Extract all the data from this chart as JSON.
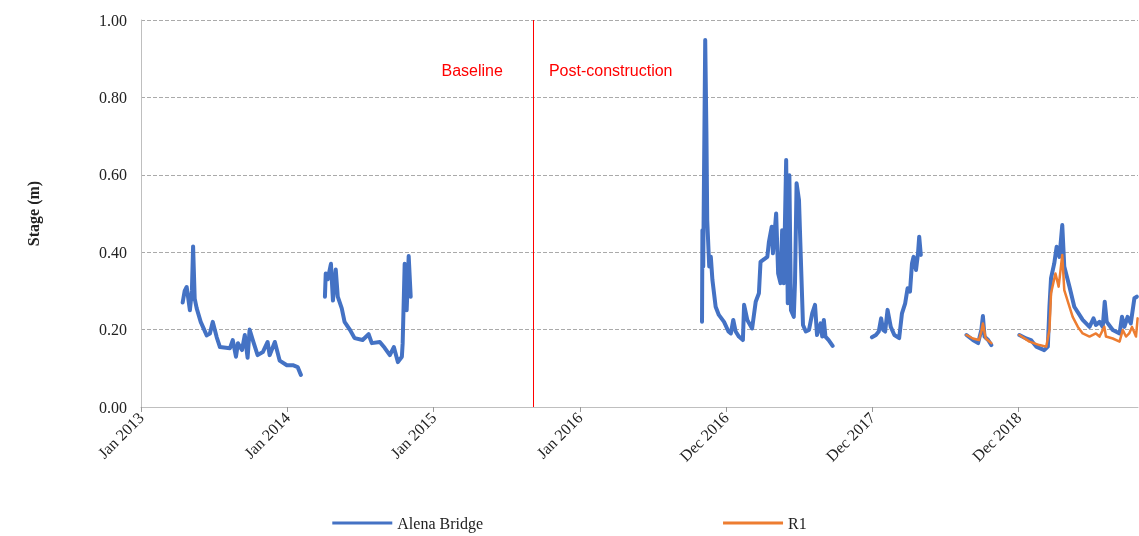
{
  "chart_data": {
    "type": "line",
    "ylabel": "Stage (m)",
    "xlim": [
      "2013-01-01",
      "2019-10-25"
    ],
    "xticks": [
      {
        "value": "2013-01-01",
        "label": "Jan 2013"
      },
      {
        "value": "2014-01-01",
        "label": "Jan 2014"
      },
      {
        "value": "2015-01-01",
        "label": "Jan 2015"
      },
      {
        "value": "2016-01-01",
        "label": "Jan 2016"
      },
      {
        "value": "2016-12-31",
        "label": "Dec 2016"
      },
      {
        "value": "2017-12-31",
        "label": "Dec 2017"
      },
      {
        "value": "2018-12-31",
        "label": "Dec 2018"
      }
    ],
    "ylim": [
      0,
      1
    ],
    "yticks": [
      {
        "value": 0,
        "label": "0.00"
      },
      {
        "value": 0.2,
        "label": "0.20"
      },
      {
        "value": 0.4,
        "label": "0.40"
      },
      {
        "value": 0.6,
        "label": "0.60"
      },
      {
        "value": 0.8,
        "label": "0.80"
      },
      {
        "value": 1,
        "label": "1.00"
      }
    ],
    "grid": "y",
    "legend": "bottom",
    "marker": "none",
    "line_style": "solid",
    "ref_lines": [
      {
        "axis": "x",
        "value": "2015-09-06",
        "color": "#ff0000"
      }
    ],
    "annotations": [
      "Baseline",
      "Post-construction"
    ],
    "series": [
      {
        "name": "Alena Bridge",
        "color": "#4472c4",
        "x": [
          "2013-04-15",
          "2013-04-20",
          "2013-04-25",
          "2013-05-03",
          "2013-05-08",
          "2013-05-11",
          "2013-05-15",
          "2013-05-20",
          "2013-05-30",
          "2013-06-14",
          "2013-06-22",
          "2013-06-29",
          "2013-07-09",
          "2013-07-17",
          "2013-08-11",
          "2013-08-18",
          "2013-08-26",
          "2013-08-31",
          "2013-09-10",
          "2013-09-17",
          "2013-09-24",
          "2013-09-29",
          "2013-10-07",
          "2013-10-19",
          "2013-11-01",
          "2013-11-13",
          "2013-11-18",
          "2013-12-01",
          "2013-12-13",
          "2013-12-31",
          "2014-01-15",
          "2014-01-27",
          "2014-02-04",
          "2014-03-10",
          "2014-04-05",
          "2014-04-07",
          "2014-04-12",
          "2014-04-20",
          "2014-04-25",
          "2014-05-02",
          "2014-05-07",
          "2014-05-17",
          "2014-05-24",
          "2014-06-06",
          "2014-06-18",
          "2014-07-08",
          "2014-07-23",
          "2014-07-31",
          "2014-08-20",
          "2014-09-01",
          "2014-09-14",
          "2014-09-24",
          "2014-10-04",
          "2014-10-14",
          "2014-10-16",
          "2014-10-21",
          "2014-10-26",
          "2014-10-31",
          "2014-11-05",
          "2015-06-01",
          "2016-11-01",
          "2016-11-02",
          "2016-11-04",
          "2016-11-09",
          "2016-11-12",
          "2016-11-14",
          "2016-11-19",
          "2016-11-23",
          "2016-11-27",
          "2016-12-05",
          "2016-12-13",
          "2016-12-26",
          "2017-01-06",
          "2017-01-12",
          "2017-01-18",
          "2017-01-24",
          "2017-02-01",
          "2017-02-11",
          "2017-02-14",
          "2017-02-22",
          "2017-03-06",
          "2017-03-15",
          "2017-03-23",
          "2017-03-27",
          "2017-04-13",
          "2017-04-17",
          "2017-04-24",
          "2017-04-27",
          "2017-05-05",
          "2017-05-10",
          "2017-05-16",
          "2017-05-20",
          "2017-05-24",
          "2017-05-30",
          "2017-06-03",
          "2017-06-07",
          "2017-06-11",
          "2017-06-18",
          "2017-06-21",
          "2017-06-25",
          "2017-07-01",
          "2017-07-06",
          "2017-07-11",
          "2017-07-18",
          "2017-07-26",
          "2017-08-03",
          "2017-08-10",
          "2017-08-15",
          "2017-08-24",
          "2017-08-28",
          "2017-09-01",
          "2017-09-05",
          "2017-09-13",
          "2017-09-23",
          "2017-11-15",
          "2017-12-30",
          "2018-01-09",
          "2018-01-16",
          "2018-01-22",
          "2018-01-27",
          "2018-02-01",
          "2018-02-07",
          "2018-02-15",
          "2018-02-24",
          "2018-03-08",
          "2018-03-15",
          "2018-03-23",
          "2018-03-29",
          "2018-04-04",
          "2018-04-09",
          "2018-04-13",
          "2018-04-19",
          "2018-04-24",
          "2018-04-27",
          "2018-05-01",
          "2018-07-01",
          "2018-08-23",
          "2018-09-08",
          "2018-09-21",
          "2018-09-29",
          "2018-10-03",
          "2018-10-07",
          "2018-10-16",
          "2018-10-24",
          "2018-12-01",
          "2019-01-02",
          "2019-01-19",
          "2019-01-31",
          "2019-02-13",
          "2019-03-05",
          "2019-03-14",
          "2019-03-18",
          "2019-03-22",
          "2019-03-30",
          "2019-04-05",
          "2019-04-12",
          "2019-04-19",
          "2019-04-24",
          "2019-05-07",
          "2019-05-19",
          "2019-06-09",
          "2019-06-26",
          "2019-07-06",
          "2019-07-12",
          "2019-07-21",
          "2019-07-29",
          "2019-08-03",
          "2019-08-08",
          "2019-08-23",
          "2019-09-09",
          "2019-09-15",
          "2019-09-21",
          "2019-09-29",
          "2019-10-07",
          "2019-10-16",
          "2019-10-22"
        ],
        "values": [
          0.27,
          0.3,
          0.31,
          0.25,
          0.3,
          0.415,
          0.28,
          0.255,
          0.22,
          0.185,
          0.19,
          0.22,
          0.18,
          0.155,
          0.152,
          0.173,
          0.13,
          0.165,
          0.147,
          0.186,
          0.127,
          0.2,
          0.173,
          0.134,
          0.142,
          0.168,
          0.134,
          0.168,
          0.12,
          0.108,
          0.108,
          0.103,
          0.083,
          null,
          0.285,
          0.345,
          0.33,
          0.37,
          0.275,
          0.355,
          0.285,
          0.255,
          0.22,
          0.2,
          0.178,
          0.173,
          0.188,
          0.165,
          0.168,
          0.153,
          0.134,
          0.155,
          0.116,
          0.13,
          0.165,
          0.37,
          0.25,
          0.39,
          0.285,
          null,
          0.22,
          0.457,
          0.363,
          0.948,
          0.707,
          0.483,
          0.363,
          0.388,
          0.328,
          0.259,
          0.238,
          0.22,
          0.195,
          0.19,
          0.225,
          0.195,
          0.182,
          0.173,
          0.264,
          0.225,
          0.203,
          0.272,
          0.294,
          0.375,
          0.388,
          0.427,
          0.466,
          0.397,
          0.5,
          0.345,
          0.32,
          0.457,
          0.32,
          0.638,
          0.268,
          0.599,
          0.25,
          0.233,
          0.32,
          0.578,
          0.535,
          0.371,
          0.212,
          0.195,
          0.199,
          0.242,
          0.264,
          0.186,
          0.216,
          0.182,
          0.225,
          0.182,
          0.173,
          0.158,
          null,
          0.18,
          0.186,
          0.195,
          0.229,
          0.199,
          0.195,
          0.251,
          0.207,
          0.186,
          0.178,
          0.242,
          0.268,
          0.307,
          0.298,
          0.371,
          0.388,
          0.354,
          0.397,
          0.44,
          0.393,
          null,
          0.186,
          0.173,
          0.165,
          0.199,
          0.235,
          0.182,
          0.173,
          0.16,
          null,
          0.186,
          0.177,
          0.173,
          0.156,
          0.147,
          0.156,
          0.259,
          0.333,
          0.371,
          0.414,
          0.388,
          0.47,
          0.363,
          0.311,
          0.259,
          0.225,
          0.207,
          0.229,
          0.212,
          0.22,
          0.207,
          0.272,
          0.22,
          0.199,
          0.19,
          0.233,
          0.207,
          0.233,
          0.216,
          0.281,
          0.285
        ]
      },
      {
        "name": "R1",
        "color": "#ed7d31",
        "x": [
          "2018-08-23",
          "2018-09-08",
          "2018-09-23",
          "2018-09-29",
          "2018-10-03",
          "2018-10-10",
          "2018-10-24",
          "2018-12-01",
          "2019-01-02",
          "2019-01-27",
          "2019-02-21",
          "2019-03-10",
          "2019-03-18",
          "2019-03-22",
          "2019-04-02",
          "2019-04-10",
          "2019-04-19",
          "2019-04-24",
          "2019-05-03",
          "2019-05-15",
          "2019-05-28",
          "2019-06-09",
          "2019-06-26",
          "2019-07-12",
          "2019-07-21",
          "2019-08-02",
          "2019-08-06",
          "2019-08-23",
          "2019-09-09",
          "2019-09-17",
          "2019-09-25",
          "2019-10-03",
          "2019-10-10",
          "2019-10-20",
          "2019-10-24"
        ],
        "values": [
          0.186,
          0.177,
          0.173,
          0.195,
          0.216,
          0.177,
          0.165,
          null,
          0.186,
          0.169,
          0.16,
          0.156,
          0.199,
          0.294,
          0.345,
          0.311,
          0.393,
          0.302,
          0.272,
          0.233,
          0.207,
          0.19,
          0.182,
          0.19,
          0.182,
          0.207,
          0.182,
          0.177,
          0.169,
          0.199,
          0.182,
          0.19,
          0.207,
          0.182,
          0.229
        ]
      }
    ]
  }
}
